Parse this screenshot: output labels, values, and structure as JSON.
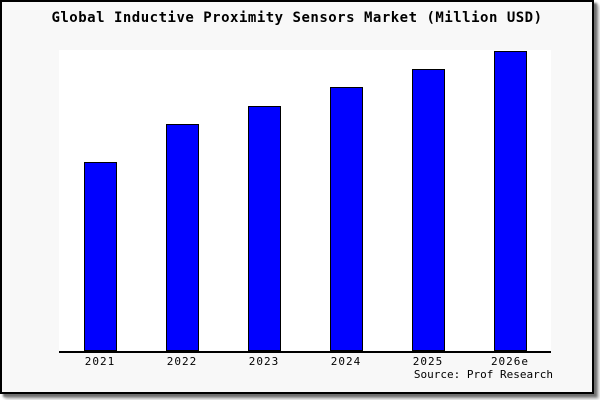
{
  "window": {
    "canvas_background": "#ffffff",
    "frame_background": "#f8f8f8",
    "frame_border_color": "#000000"
  },
  "chart_data": {
    "type": "bar",
    "title": "Global Inductive Proximity Sensors Market (Million USD)",
    "categories": [
      "2021",
      "2022",
      "2023",
      "2024",
      "2025",
      "2026e"
    ],
    "values": [
      189,
      227,
      245,
      264,
      282,
      300
    ],
    "value_note": "no y-axis or value labels shown in image; values are relative bar heights in pixels measured from baseline",
    "ylim": [
      0,
      301
    ],
    "xlabel": "",
    "ylabel": "",
    "grid": false,
    "legend": false,
    "bar_color": "#0000ff",
    "bar_border_color": "#000000",
    "axis_color": "#000000",
    "plot_background": "#ffffff",
    "source_label": "Source: Prof Research"
  }
}
